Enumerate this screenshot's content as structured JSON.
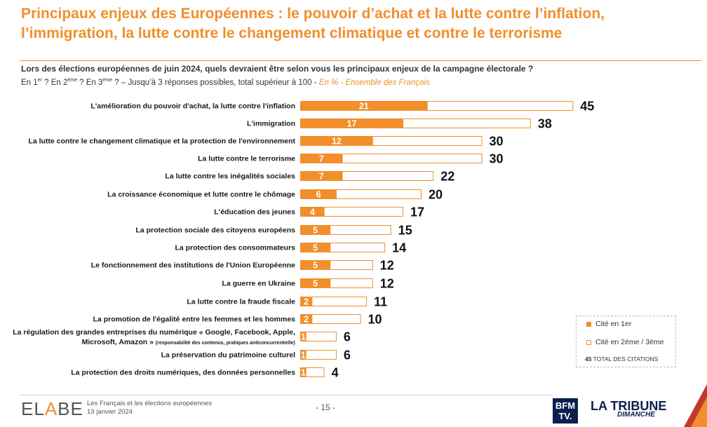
{
  "header": {
    "title": "Principaux enjeux des Européennes : le pouvoir d’achat et la lutte contre l’inflation, l’immigration, la lutte contre le changement climatique et contre le terrorisme",
    "question": "Lors des élections européennes de juin 2024, quels devraient être selon vous les principaux enjeux de la campagne électorale ?",
    "subtitle_prefix_1": "En 1",
    "sup_1": "er",
    "subtitle_prefix_2": " ? En 2",
    "sup_2": "ème",
    "subtitle_prefix_3": " ? En 3",
    "sup_3": "ème",
    "subtitle_rest": " ? – Jusqu’à 3 réponses possibles, total supérieur à 100 - ",
    "subtitle_highlight": "En % - Ensemble des Français"
  },
  "colors": {
    "accent": "#f28e2b",
    "bar_first": "#f28e2b",
    "bar_total_border": "#f28e2b",
    "brand_navy": "#0b1f4d"
  },
  "chart_data": {
    "type": "bar",
    "orientation": "horizontal",
    "stacked": true,
    "categories": [
      "L'amélioration du pouvoir d'achat, la lutte contre l'inflation",
      "L'immigration",
      "La lutte contre le changement climatique et la protection de l'environnement",
      "La lutte contre le terrorisme",
      "La lutte contre les inégalités sociales",
      "La croissance économique et lutte contre le chômage",
      "L'éducation des jeunes",
      "La protection sociale des citoyens européens",
      "La protection des consommateurs",
      "Le fonctionnement des institutions de l'Union Européenne",
      "La guerre en Ukraine",
      "La lutte contre la fraude fiscale",
      "La promotion de l'égalité entre les femmes et les hommes",
      "La régulation des grandes entreprises du numérique « Google, Facebook, Apple, Microsoft, Amazon »",
      "La préservation du patrimoine culturel",
      "La protection des droits numériques, des données personnelles"
    ],
    "category_notes": {
      "13": "(responsabilité des contenus, pratiques anticoncurrentielle)"
    },
    "series": [
      {
        "name": "Cité en 1er",
        "values": [
          21,
          17,
          12,
          7,
          7,
          6,
          4,
          5,
          5,
          5,
          5,
          2,
          2,
          1,
          1,
          1
        ]
      },
      {
        "name": "Cité en 2ème / 3ème",
        "values": [
          24,
          21,
          18,
          23,
          15,
          14,
          13,
          10,
          9,
          7,
          7,
          9,
          8,
          5,
          5,
          3
        ]
      }
    ],
    "totals": [
      45,
      38,
      30,
      30,
      22,
      20,
      17,
      15,
      14,
      12,
      12,
      11,
      10,
      6,
      6,
      4
    ],
    "xlim": [
      0,
      45
    ],
    "grid": false,
    "legend": {
      "first": "Cité en 1er",
      "total": "Cité en 2ème / 3ème",
      "total_num": "45",
      "total_label": "TOTAL DES CITATIONS",
      "placement": "bottom-right"
    }
  },
  "footer": {
    "logo_part1": "EL",
    "logo_accent": "A",
    "logo_part2": "BE",
    "study": "Les Français et les élections européennes",
    "date": "13 janvier 2024",
    "page": "- 15 -",
    "bfm_line1": "BFM",
    "bfm_line2": "TV.",
    "tribune": "LA TRIBUNE",
    "tribune_sub": "DIMANCHE"
  }
}
